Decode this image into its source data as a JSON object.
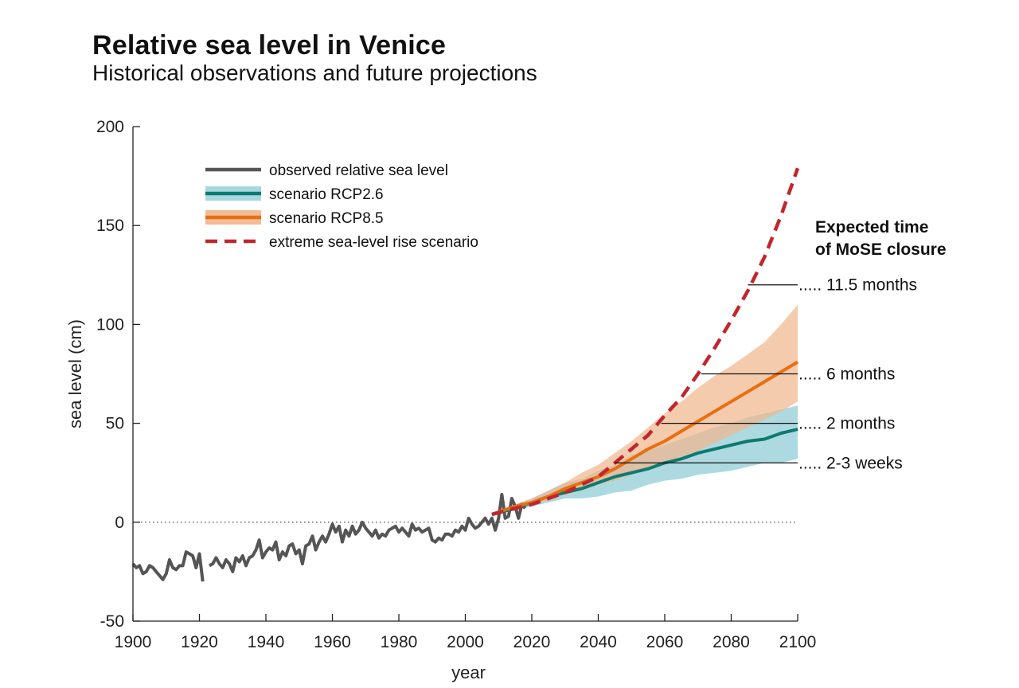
{
  "chart_data": {
    "type": "line",
    "title": "Relative sea level in Venice",
    "subtitle": "Historical observations and future projections",
    "xlabel": "year",
    "ylabel": "sea level (cm)",
    "xlim": [
      1900,
      2100
    ],
    "ylim": [
      -50,
      200
    ],
    "xticks": [
      1900,
      1920,
      1940,
      1960,
      1980,
      2000,
      2020,
      2040,
      2060,
      2080,
      2100
    ],
    "yticks": [
      -50,
      0,
      50,
      100,
      150,
      200
    ],
    "zero_reference_line": true,
    "colors": {
      "observed": "#555555",
      "rcp26": "#0e7a70",
      "rcp26_band": "#9fd3da",
      "rcp85": "#e86f10",
      "rcp85_band": "#f1b58c",
      "extreme": "#c0272d"
    },
    "legend": {
      "placement": "top-left",
      "entries": [
        {
          "key": "observed",
          "label": "observed relative sea level",
          "style": "line"
        },
        {
          "key": "rcp26",
          "label": "scenario RCP2.6",
          "style": "line-band"
        },
        {
          "key": "rcp85",
          "label": "scenario RCP8.5",
          "style": "line-band"
        },
        {
          "key": "extreme",
          "label": "extreme sea-level rise scenario",
          "style": "dashed"
        }
      ]
    },
    "series": [
      {
        "key": "observed",
        "name": "observed relative sea level",
        "segments": [
          {
            "x": [
              1900,
              1901,
              1902,
              1903,
              1904,
              1905,
              1906,
              1907,
              1908,
              1909,
              1910,
              1911,
              1912,
              1913,
              1914,
              1915,
              1916,
              1917,
              1918,
              1919,
              1920,
              1921
            ],
            "y": [
              -21,
              -23,
              -22,
              -26,
              -25,
              -22,
              -23,
              -25,
              -27,
              -29,
              -26,
              -19,
              -23,
              -24,
              -22,
              -22,
              -15,
              -16,
              -17,
              -23,
              -16,
              -30
            ]
          },
          {
            "x": [
              1923,
              1924,
              1925,
              1926,
              1927,
              1928,
              1929,
              1930,
              1931,
              1932,
              1933,
              1934,
              1935,
              1936,
              1937,
              1938,
              1939,
              1940,
              1941,
              1942,
              1943,
              1944,
              1945,
              1946,
              1947,
              1948,
              1949,
              1950,
              1951,
              1952,
              1953,
              1954,
              1955,
              1956,
              1957,
              1958,
              1959,
              1960,
              1961,
              1962,
              1963,
              1964,
              1965,
              1966,
              1967,
              1968,
              1969,
              1970,
              1971,
              1972,
              1973,
              1974,
              1975,
              1976,
              1977,
              1978,
              1979,
              1980,
              1981,
              1982,
              1983,
              1984,
              1985,
              1986,
              1987,
              1988,
              1989,
              1990,
              1991,
              1992,
              1993,
              1994,
              1995,
              1996,
              1997,
              1998,
              1999,
              2000,
              2001,
              2002,
              2003,
              2004,
              2005,
              2006,
              2007,
              2008,
              2009,
              2010,
              2011,
              2012,
              2013,
              2014,
              2015,
              2016,
              2017,
              2018
            ],
            "y": [
              -22,
              -21,
              -18,
              -21,
              -23,
              -19,
              -21,
              -25,
              -18,
              -20,
              -17,
              -22,
              -18,
              -17,
              -14,
              -9,
              -18,
              -15,
              -13,
              -14,
              -10,
              -19,
              -15,
              -17,
              -12,
              -11,
              -16,
              -14,
              -21,
              -12,
              -11,
              -7,
              -14,
              -10,
              -7,
              -10,
              -6,
              -1,
              -5,
              -2,
              -10,
              -4,
              -7,
              -2,
              -6,
              -4,
              0,
              -3,
              -5,
              -7,
              -4,
              -8,
              -6,
              -7,
              -4,
              -3,
              -2,
              -5,
              -3,
              -5,
              -7,
              -1,
              -4,
              -3,
              -5,
              -4,
              -3,
              -9,
              -10,
              -8,
              -9,
              -6,
              -6,
              -7,
              -4,
              -5,
              -2,
              -4,
              2,
              -1,
              -3,
              -2,
              0,
              2,
              -1,
              2,
              -4,
              2,
              14,
              2,
              3,
              12,
              8,
              2,
              9,
              7
            ]
          }
        ]
      },
      {
        "key": "rcp26",
        "name": "scenario RCP2.6",
        "x": [
          2008,
          2015,
          2020,
          2025,
          2030,
          2035,
          2040,
          2045,
          2050,
          2055,
          2060,
          2065,
          2070,
          2075,
          2080,
          2085,
          2090,
          2095,
          2100
        ],
        "y": [
          4,
          7,
          10,
          13,
          15,
          17,
          20,
          23,
          25,
          27,
          30,
          32,
          35,
          37,
          39,
          41,
          42,
          45,
          47
        ],
        "band_upper": [
          4,
          9,
          12,
          16,
          20,
          22,
          26,
          29,
          34,
          36,
          39,
          42,
          45,
          48,
          50,
          53,
          55,
          57,
          59
        ],
        "band_lower": [
          4,
          6,
          8,
          10,
          12,
          12,
          13,
          15,
          16,
          19,
          21,
          22,
          24,
          25,
          26,
          28,
          30,
          30,
          32
        ]
      },
      {
        "key": "rcp85",
        "name": "scenario RCP8.5",
        "x": [
          2008,
          2015,
          2020,
          2025,
          2030,
          2035,
          2040,
          2045,
          2050,
          2055,
          2060,
          2065,
          2070,
          2075,
          2080,
          2085,
          2090,
          2095,
          2100
        ],
        "y": [
          4,
          8,
          10,
          13,
          17,
          20,
          23,
          27,
          32,
          37,
          41,
          46,
          51,
          56,
          61,
          66,
          71,
          76,
          81
        ],
        "band_upper": [
          4,
          9,
          12,
          16,
          20,
          25,
          29,
          35,
          41,
          48,
          55,
          61,
          68,
          74,
          79,
          85,
          91,
          100,
          110
        ],
        "band_lower": [
          4,
          7,
          9,
          11,
          14,
          16,
          19,
          21,
          24,
          27,
          29,
          33,
          36,
          40,
          44,
          48,
          52,
          56,
          61
        ]
      },
      {
        "key": "extreme",
        "name": "extreme sea-level rise scenario",
        "x": [
          2008,
          2015,
          2020,
          2025,
          2030,
          2035,
          2040,
          2045,
          2050,
          2055,
          2060,
          2065,
          2070,
          2075,
          2080,
          2085,
          2090,
          2095,
          2100
        ],
        "y": [
          4,
          7,
          9,
          12,
          15,
          19,
          23,
          30,
          37,
          44,
          54,
          63,
          75,
          88,
          102,
          117,
          134,
          155,
          179
        ]
      }
    ],
    "annotation_heading": [
      "Expected time",
      "of MoSE closure"
    ],
    "annotations": [
      {
        "y": 120,
        "label": "11.5 months",
        "from_year": 2085
      },
      {
        "y": 75,
        "label": "6 months",
        "from_year": 2071
      },
      {
        "y": 50,
        "label": "2 months",
        "from_year": 2059
      },
      {
        "y": 30,
        "label": "2-3 weeks",
        "from_year": 2045
      }
    ],
    "annotation_leader": "....."
  }
}
